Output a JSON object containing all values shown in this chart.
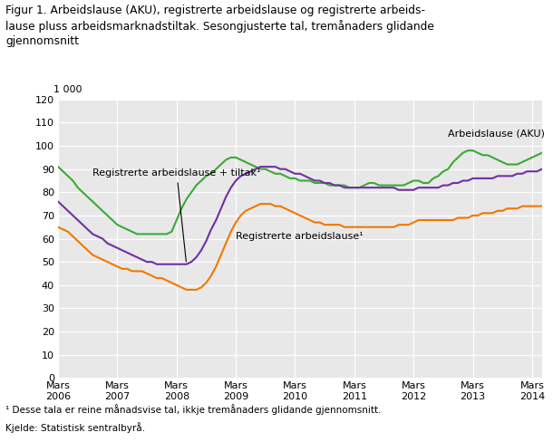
{
  "title_lines": [
    "Figur 1. Arbeidslause (AKU), registrerte arbeidslause og registrerte arbeids-",
    "lause pluss arbeidsmarknadstiltak. Sesongjusterte tal, tremånaders glidande",
    "gjennomsnitt"
  ],
  "footnote1": "¹ Desse tala er reine månadsvise tal, ikkje tremånaders glidande gjennomsnitt.",
  "footnote2": "Kjelde: Statistisk sentralbyrå.",
  "ylabel_top": "1 000",
  "ylim": [
    0,
    120
  ],
  "yticks": [
    0,
    10,
    20,
    30,
    40,
    50,
    60,
    70,
    80,
    90,
    100,
    110,
    120
  ],
  "xtick_labels": [
    "Mars\n2006",
    "Mars\n2007",
    "Mars\n2008",
    "Mars\n2009",
    "Mars\n2010",
    "Mars\n2011",
    "Mars\n2012",
    "Mars\n2013",
    "Mars\n2014"
  ],
  "color_aku": "#3aaa35",
  "color_reg": "#f07800",
  "color_tiltak": "#7030a0",
  "label_aku": "Arbeidslause (AKU)",
  "label_reg": "Registrerte arbeidslause¹",
  "label_tiltak": "Registrerte arbeidslause + tiltak¹",
  "bg_color": "#e8e8e8",
  "grid_color": "#ffffff",
  "aku": [
    91,
    89,
    87,
    85,
    82,
    80,
    78,
    76,
    74,
    72,
    70,
    68,
    66,
    65,
    64,
    63,
    62,
    62,
    62,
    62,
    62,
    62,
    62,
    63,
    68,
    73,
    77,
    80,
    83,
    85,
    87,
    88,
    90,
    92,
    94,
    95,
    95,
    94,
    93,
    92,
    91,
    90,
    90,
    89,
    88,
    88,
    87,
    86,
    86,
    85,
    85,
    85,
    84,
    84,
    84,
    83,
    83,
    83,
    83,
    82,
    82,
    82,
    83,
    84,
    84,
    83,
    83,
    83,
    83,
    83,
    83,
    84,
    85,
    85,
    84,
    84,
    86,
    87,
    89,
    90,
    93,
    95,
    97,
    98,
    98,
    97,
    96,
    96,
    95,
    94,
    93,
    92,
    92,
    92,
    93,
    94,
    95,
    96,
    97
  ],
  "reg": [
    65,
    64,
    63,
    61,
    59,
    57,
    55,
    53,
    52,
    51,
    50,
    49,
    48,
    47,
    47,
    46,
    46,
    46,
    45,
    44,
    43,
    43,
    42,
    41,
    40,
    39,
    38,
    38,
    38,
    39,
    41,
    44,
    48,
    53,
    58,
    63,
    67,
    70,
    72,
    73,
    74,
    75,
    75,
    75,
    74,
    74,
    73,
    72,
    71,
    70,
    69,
    68,
    67,
    67,
    66,
    66,
    66,
    66,
    65,
    65,
    65,
    65,
    65,
    65,
    65,
    65,
    65,
    65,
    65,
    66,
    66,
    66,
    67,
    68,
    68,
    68,
    68,
    68,
    68,
    68,
    68,
    69,
    69,
    69,
    70,
    70,
    71,
    71,
    71,
    72,
    72,
    73,
    73,
    73,
    74,
    74,
    74,
    74,
    74
  ],
  "tiltak": [
    76,
    74,
    72,
    70,
    68,
    66,
    64,
    62,
    61,
    60,
    58,
    57,
    56,
    55,
    54,
    53,
    52,
    51,
    50,
    50,
    49,
    49,
    49,
    49,
    49,
    49,
    49,
    50,
    52,
    55,
    59,
    64,
    68,
    73,
    78,
    82,
    85,
    87,
    88,
    89,
    90,
    91,
    91,
    91,
    91,
    90,
    90,
    89,
    88,
    88,
    87,
    86,
    85,
    85,
    84,
    84,
    83,
    83,
    82,
    82,
    82,
    82,
    82,
    82,
    82,
    82,
    82,
    82,
    82,
    81,
    81,
    81,
    81,
    82,
    82,
    82,
    82,
    82,
    83,
    83,
    84,
    84,
    85,
    85,
    86,
    86,
    86,
    86,
    86,
    87,
    87,
    87,
    87,
    88,
    88,
    89,
    89,
    89,
    90
  ]
}
